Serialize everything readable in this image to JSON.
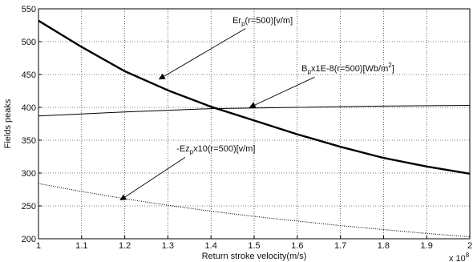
{
  "chart_data": {
    "type": "line",
    "xlabel": "Return stroke velocity(m/s)",
    "ylabel": "Fields peaks",
    "x_multiplier_label": "x 10",
    "x_multiplier_exponent": "8",
    "xlim": [
      1,
      2
    ],
    "ylim": [
      200,
      550
    ],
    "grid": true,
    "x_ticks": [
      1,
      1.1,
      1.2,
      1.3,
      1.4,
      1.5,
      1.6,
      1.7,
      1.8,
      1.9,
      2
    ],
    "x_tick_labels": [
      "1",
      "1.1",
      "1.2",
      "1.3",
      "1.4",
      "1.5",
      "1.6",
      "1.7",
      "1.8",
      "1.9",
      "2"
    ],
    "y_ticks": [
      200,
      250,
      300,
      350,
      400,
      450,
      500,
      550
    ],
    "y_tick_labels": [
      "200",
      "250",
      "300",
      "350",
      "400",
      "450",
      "500",
      "550"
    ],
    "series": [
      {
        "x": [
          1,
          1.1,
          1.2,
          1.3,
          1.4,
          1.5,
          1.6,
          1.7,
          1.8,
          1.9,
          2
        ],
        "values": [
          532,
          492,
          455,
          426,
          401,
          380,
          359,
          340,
          323,
          310,
          299
        ],
        "color": "#000000",
        "style": "solid-thick"
      },
      {
        "x": [
          1,
          1.2,
          1.4,
          1.6,
          1.8,
          2
        ],
        "values": [
          387,
          393,
          398,
          400,
          402,
          403
        ],
        "color": "#000000",
        "style": "solid-thin"
      },
      {
        "x": [
          1,
          1.1,
          1.2,
          1.3,
          1.4,
          1.5,
          1.6,
          1.7,
          1.8,
          1.9,
          2
        ],
        "values": [
          284,
          272,
          261,
          251,
          242,
          234,
          227,
          220,
          214,
          208,
          203
        ],
        "color": "#000000",
        "style": "dotted"
      }
    ],
    "annotations": [
      {
        "main": "Er",
        "sub": "p",
        "rest": "(r=500)[v/m]",
        "text_at": [
          1.45,
          528
        ],
        "arrow_from": [
          1.48,
          520
        ],
        "arrow_to": [
          1.28,
          443
        ]
      },
      {
        "main": "B",
        "sub": "p",
        "rest": "x1E-8(r=500)[Wb/m",
        "sup": "2",
        "close": "]",
        "text_at": [
          1.61,
          455
        ],
        "arrow_from": [
          1.64,
          446
        ],
        "arrow_to": [
          1.49,
          400
        ]
      },
      {
        "main": "-Ez",
        "sub": "p",
        "rest": "x10(r=500)[v/m]",
        "text_at": [
          1.32,
          333
        ],
        "arrow_from": [
          1.34,
          324
        ],
        "arrow_to": [
          1.19,
          259
        ]
      }
    ]
  }
}
